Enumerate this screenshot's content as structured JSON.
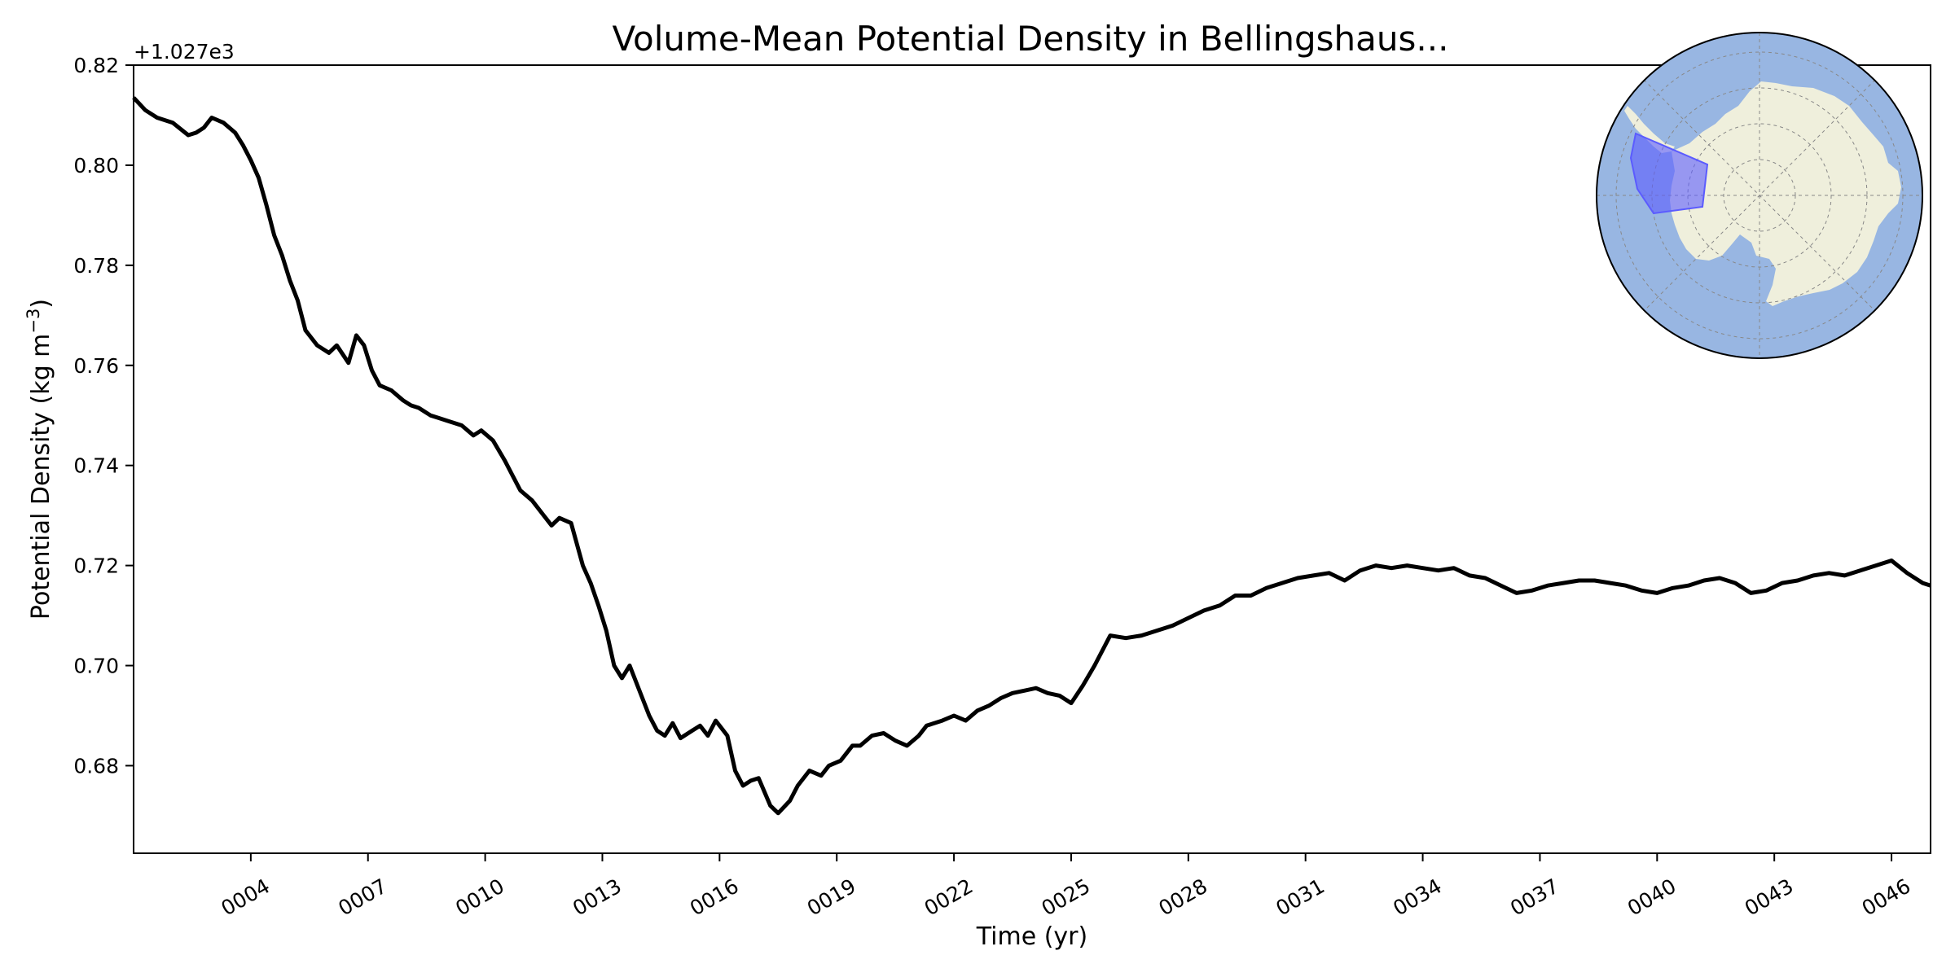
{
  "chart_data": {
    "type": "line",
    "title": "Volume-Mean Potential Density in Bellingshaus...",
    "xlabel": "Time (yr)",
    "ylabel_main": "Potential Density (kg m",
    "ylabel_unit_exp": "−3",
    "ylabel_close": ")",
    "y_offset_label": "+1.027e3",
    "xlim": [
      1.0,
      47.0
    ],
    "ylim": [
      0.6625,
      0.82
    ],
    "x_ticks": [
      {
        "value": 4,
        "label": "0004"
      },
      {
        "value": 7,
        "label": "0007"
      },
      {
        "value": 10,
        "label": "0010"
      },
      {
        "value": 13,
        "label": "0013"
      },
      {
        "value": 16,
        "label": "0016"
      },
      {
        "value": 19,
        "label": "0019"
      },
      {
        "value": 22,
        "label": "0022"
      },
      {
        "value": 25,
        "label": "0025"
      },
      {
        "value": 28,
        "label": "0028"
      },
      {
        "value": 31,
        "label": "0031"
      },
      {
        "value": 34,
        "label": "0034"
      },
      {
        "value": 37,
        "label": "0037"
      },
      {
        "value": 40,
        "label": "0040"
      },
      {
        "value": 43,
        "label": "0043"
      },
      {
        "value": 46,
        "label": "0046"
      }
    ],
    "y_ticks": [
      {
        "value": 0.68,
        "label": "0.68"
      },
      {
        "value": 0.7,
        "label": "0.70"
      },
      {
        "value": 0.72,
        "label": "0.72"
      },
      {
        "value": 0.74,
        "label": "0.74"
      },
      {
        "value": 0.76,
        "label": "0.76"
      },
      {
        "value": 0.78,
        "label": "0.78"
      },
      {
        "value": 0.8,
        "label": "0.80"
      },
      {
        "value": 0.82,
        "label": "0.82"
      }
    ],
    "grid": false,
    "series": [
      {
        "color": "#000000",
        "x": [
          1.0,
          1.3,
          1.6,
          2.0,
          2.4,
          2.6,
          2.8,
          3.0,
          3.3,
          3.6,
          3.8,
          4.0,
          4.2,
          4.4,
          4.6,
          4.8,
          5.0,
          5.2,
          5.4,
          5.5,
          5.7,
          6.0,
          6.2,
          6.5,
          6.7,
          6.9,
          7.1,
          7.3,
          7.6,
          7.9,
          8.1,
          8.3,
          8.6,
          8.8,
          9.0,
          9.4,
          9.7,
          9.9,
          10.2,
          10.5,
          10.7,
          10.9,
          11.2,
          11.5,
          11.7,
          11.9,
          12.2,
          12.5,
          12.7,
          12.9,
          13.1,
          13.3,
          13.5,
          13.7,
          13.9,
          14.2,
          14.4,
          14.6,
          14.8,
          15.0,
          15.3,
          15.5,
          15.7,
          15.9,
          16.2,
          16.4,
          16.6,
          16.8,
          17.0,
          17.3,
          17.5,
          17.8,
          18.0,
          18.3,
          18.6,
          18.8,
          19.1,
          19.4,
          19.6,
          19.9,
          20.2,
          20.5,
          20.8,
          21.1,
          21.3,
          21.7,
          22.0,
          22.3,
          22.6,
          22.9,
          23.2,
          23.5,
          23.8,
          24.1,
          24.4,
          24.7,
          25.0,
          25.3,
          25.6,
          26.0,
          26.4,
          26.8,
          27.2,
          27.6,
          28.0,
          28.4,
          28.8,
          29.2,
          29.6,
          30.0,
          30.4,
          30.8,
          31.2,
          31.6,
          32.0,
          32.4,
          32.8,
          33.2,
          33.6,
          34.0,
          34.4,
          34.8,
          35.2,
          35.6,
          36.0,
          36.4,
          36.8,
          37.2,
          37.6,
          38.0,
          38.4,
          38.8,
          39.2,
          39.6,
          40.0,
          40.4,
          40.8,
          41.2,
          41.6,
          42.0,
          42.4,
          42.8,
          43.2,
          43.6,
          44.0,
          44.4,
          44.8,
          45.2,
          45.6,
          46.0,
          46.4,
          46.8,
          47.0
        ],
        "values": [
          0.8135,
          0.811,
          0.8095,
          0.8085,
          0.806,
          0.8065,
          0.8075,
          0.8095,
          0.8085,
          0.8065,
          0.804,
          0.801,
          0.7975,
          0.792,
          0.786,
          0.782,
          0.777,
          0.773,
          0.767,
          0.766,
          0.764,
          0.7625,
          0.764,
          0.7605,
          0.766,
          0.764,
          0.759,
          0.756,
          0.755,
          0.753,
          0.752,
          0.7515,
          0.75,
          0.7495,
          0.749,
          0.748,
          0.746,
          0.747,
          0.745,
          0.741,
          0.738,
          0.735,
          0.733,
          0.73,
          0.728,
          0.7295,
          0.7285,
          0.72,
          0.7165,
          0.712,
          0.707,
          0.7,
          0.6975,
          0.7,
          0.696,
          0.69,
          0.687,
          0.686,
          0.6885,
          0.6855,
          0.687,
          0.688,
          0.686,
          0.689,
          0.686,
          0.679,
          0.676,
          0.677,
          0.6775,
          0.672,
          0.6705,
          0.673,
          0.676,
          0.679,
          0.678,
          0.68,
          0.681,
          0.684,
          0.684,
          0.686,
          0.6865,
          0.685,
          0.684,
          0.686,
          0.688,
          0.689,
          0.69,
          0.689,
          0.691,
          0.692,
          0.6935,
          0.6945,
          0.695,
          0.6955,
          0.6945,
          0.694,
          0.6925,
          0.696,
          0.7,
          0.706,
          0.7055,
          0.706,
          0.707,
          0.708,
          0.7095,
          0.711,
          0.712,
          0.714,
          0.714,
          0.7155,
          0.7165,
          0.7175,
          0.718,
          0.7185,
          0.717,
          0.719,
          0.72,
          0.7195,
          0.72,
          0.7195,
          0.719,
          0.7195,
          0.718,
          0.7175,
          0.716,
          0.7145,
          0.715,
          0.716,
          0.7165,
          0.717,
          0.717,
          0.7165,
          0.716,
          0.715,
          0.7145,
          0.7155,
          0.716,
          0.717,
          0.7175,
          0.7165,
          0.7145,
          0.715,
          0.7165,
          0.717,
          0.718,
          0.7185,
          0.718,
          0.719,
          0.72,
          0.721,
          0.7185,
          0.7165,
          0.716
        ]
      }
    ]
  },
  "inset_map": {
    "projection": "south-polar-stereographic",
    "ocean_color": "#98b6e2",
    "land_color": "#efefdc",
    "region_color": "#5b5bff",
    "gridlines": true
  }
}
